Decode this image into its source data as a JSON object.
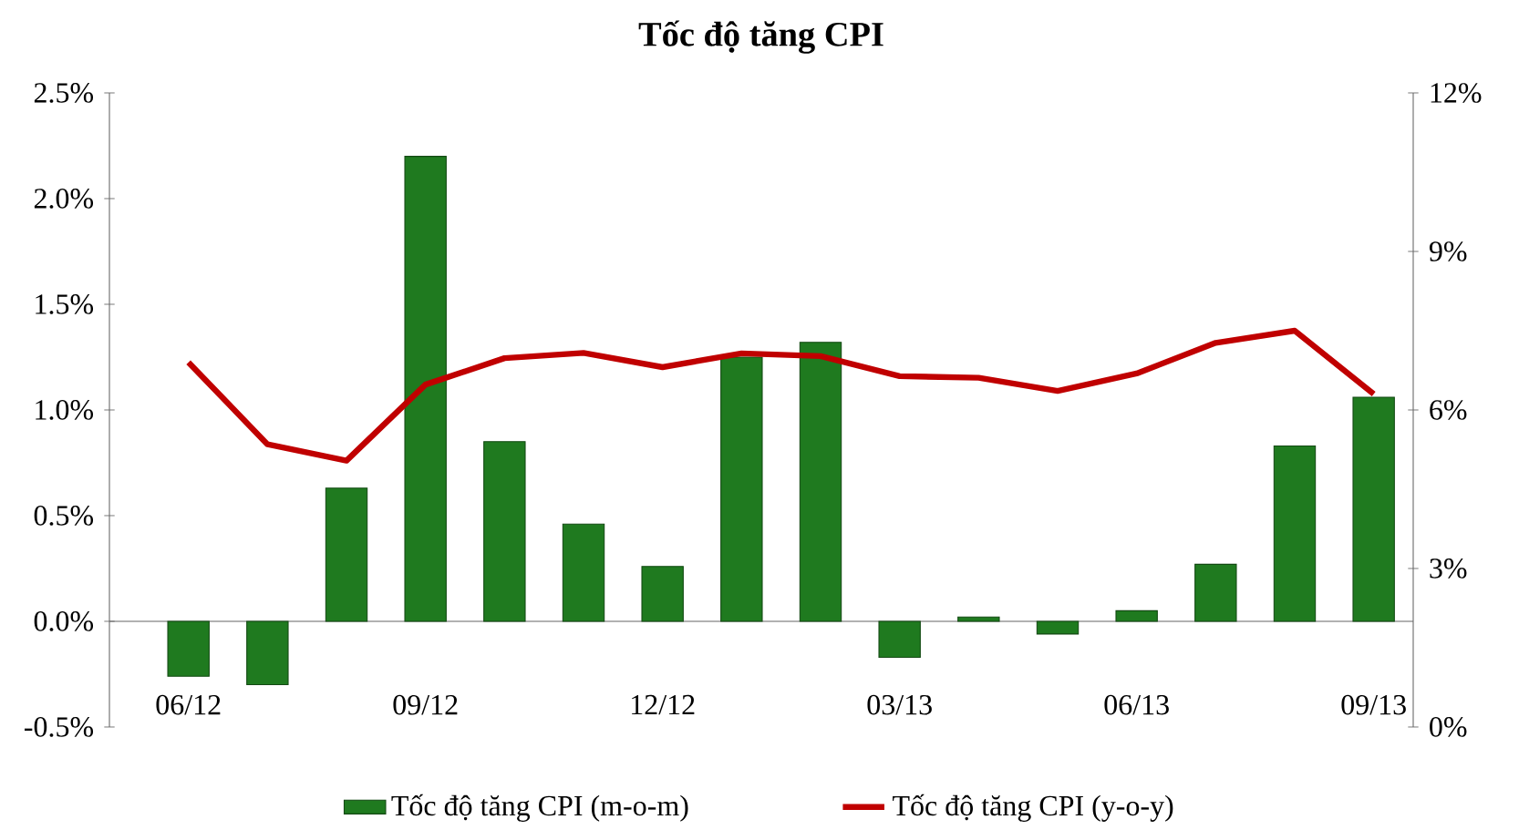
{
  "chart_data": {
    "type": "bar",
    "title": "Tốc độ tăng CPI",
    "categories": [
      "06/12",
      null,
      null,
      "09/12",
      null,
      null,
      "12/12",
      null,
      null,
      "03/13",
      null,
      null,
      "06/13",
      null,
      null,
      "09/13"
    ],
    "series": [
      {
        "name": "Tốc độ tăng CPI (m-o-m)",
        "color": "#1f7a1f",
        "values": [
          -0.26,
          -0.3,
          0.63,
          2.2,
          0.85,
          0.46,
          0.26,
          1.25,
          1.32,
          -0.17,
          0.02,
          -0.06,
          0.05,
          0.27,
          0.83,
          1.06
        ]
      },
      {
        "name": "Tốc độ tăng CPI (y-o-y)",
        "type": "line",
        "axis": "y2",
        "color": "#c00000",
        "values": [
          6.9,
          5.35,
          5.04,
          6.48,
          6.98,
          7.08,
          6.81,
          7.07,
          7.02,
          6.64,
          6.61,
          6.36,
          6.69,
          7.27,
          7.5,
          6.3
        ]
      }
    ],
    "ylim": [
      -0.5,
      2.5
    ],
    "yticks": [
      {
        "value": -0.5,
        "label": "-0.5%"
      },
      {
        "value": 0,
        "label": "0.0%"
      },
      {
        "value": 0.5,
        "label": "0.5%"
      },
      {
        "value": 1,
        "label": "1.0%"
      },
      {
        "value": 1.5,
        "label": "1.5%"
      },
      {
        "value": 2,
        "label": "2.0%"
      },
      {
        "value": 2.5,
        "label": "2.5%"
      }
    ],
    "y2lim": [
      0,
      12
    ],
    "y2ticks": [
      {
        "value": 0,
        "label": "0%"
      },
      {
        "value": 3,
        "label": "3%"
      },
      {
        "value": 6,
        "label": "6%"
      },
      {
        "value": 9,
        "label": "9%"
      },
      {
        "value": 12,
        "label": "12%"
      }
    ],
    "legend": "bottom"
  }
}
